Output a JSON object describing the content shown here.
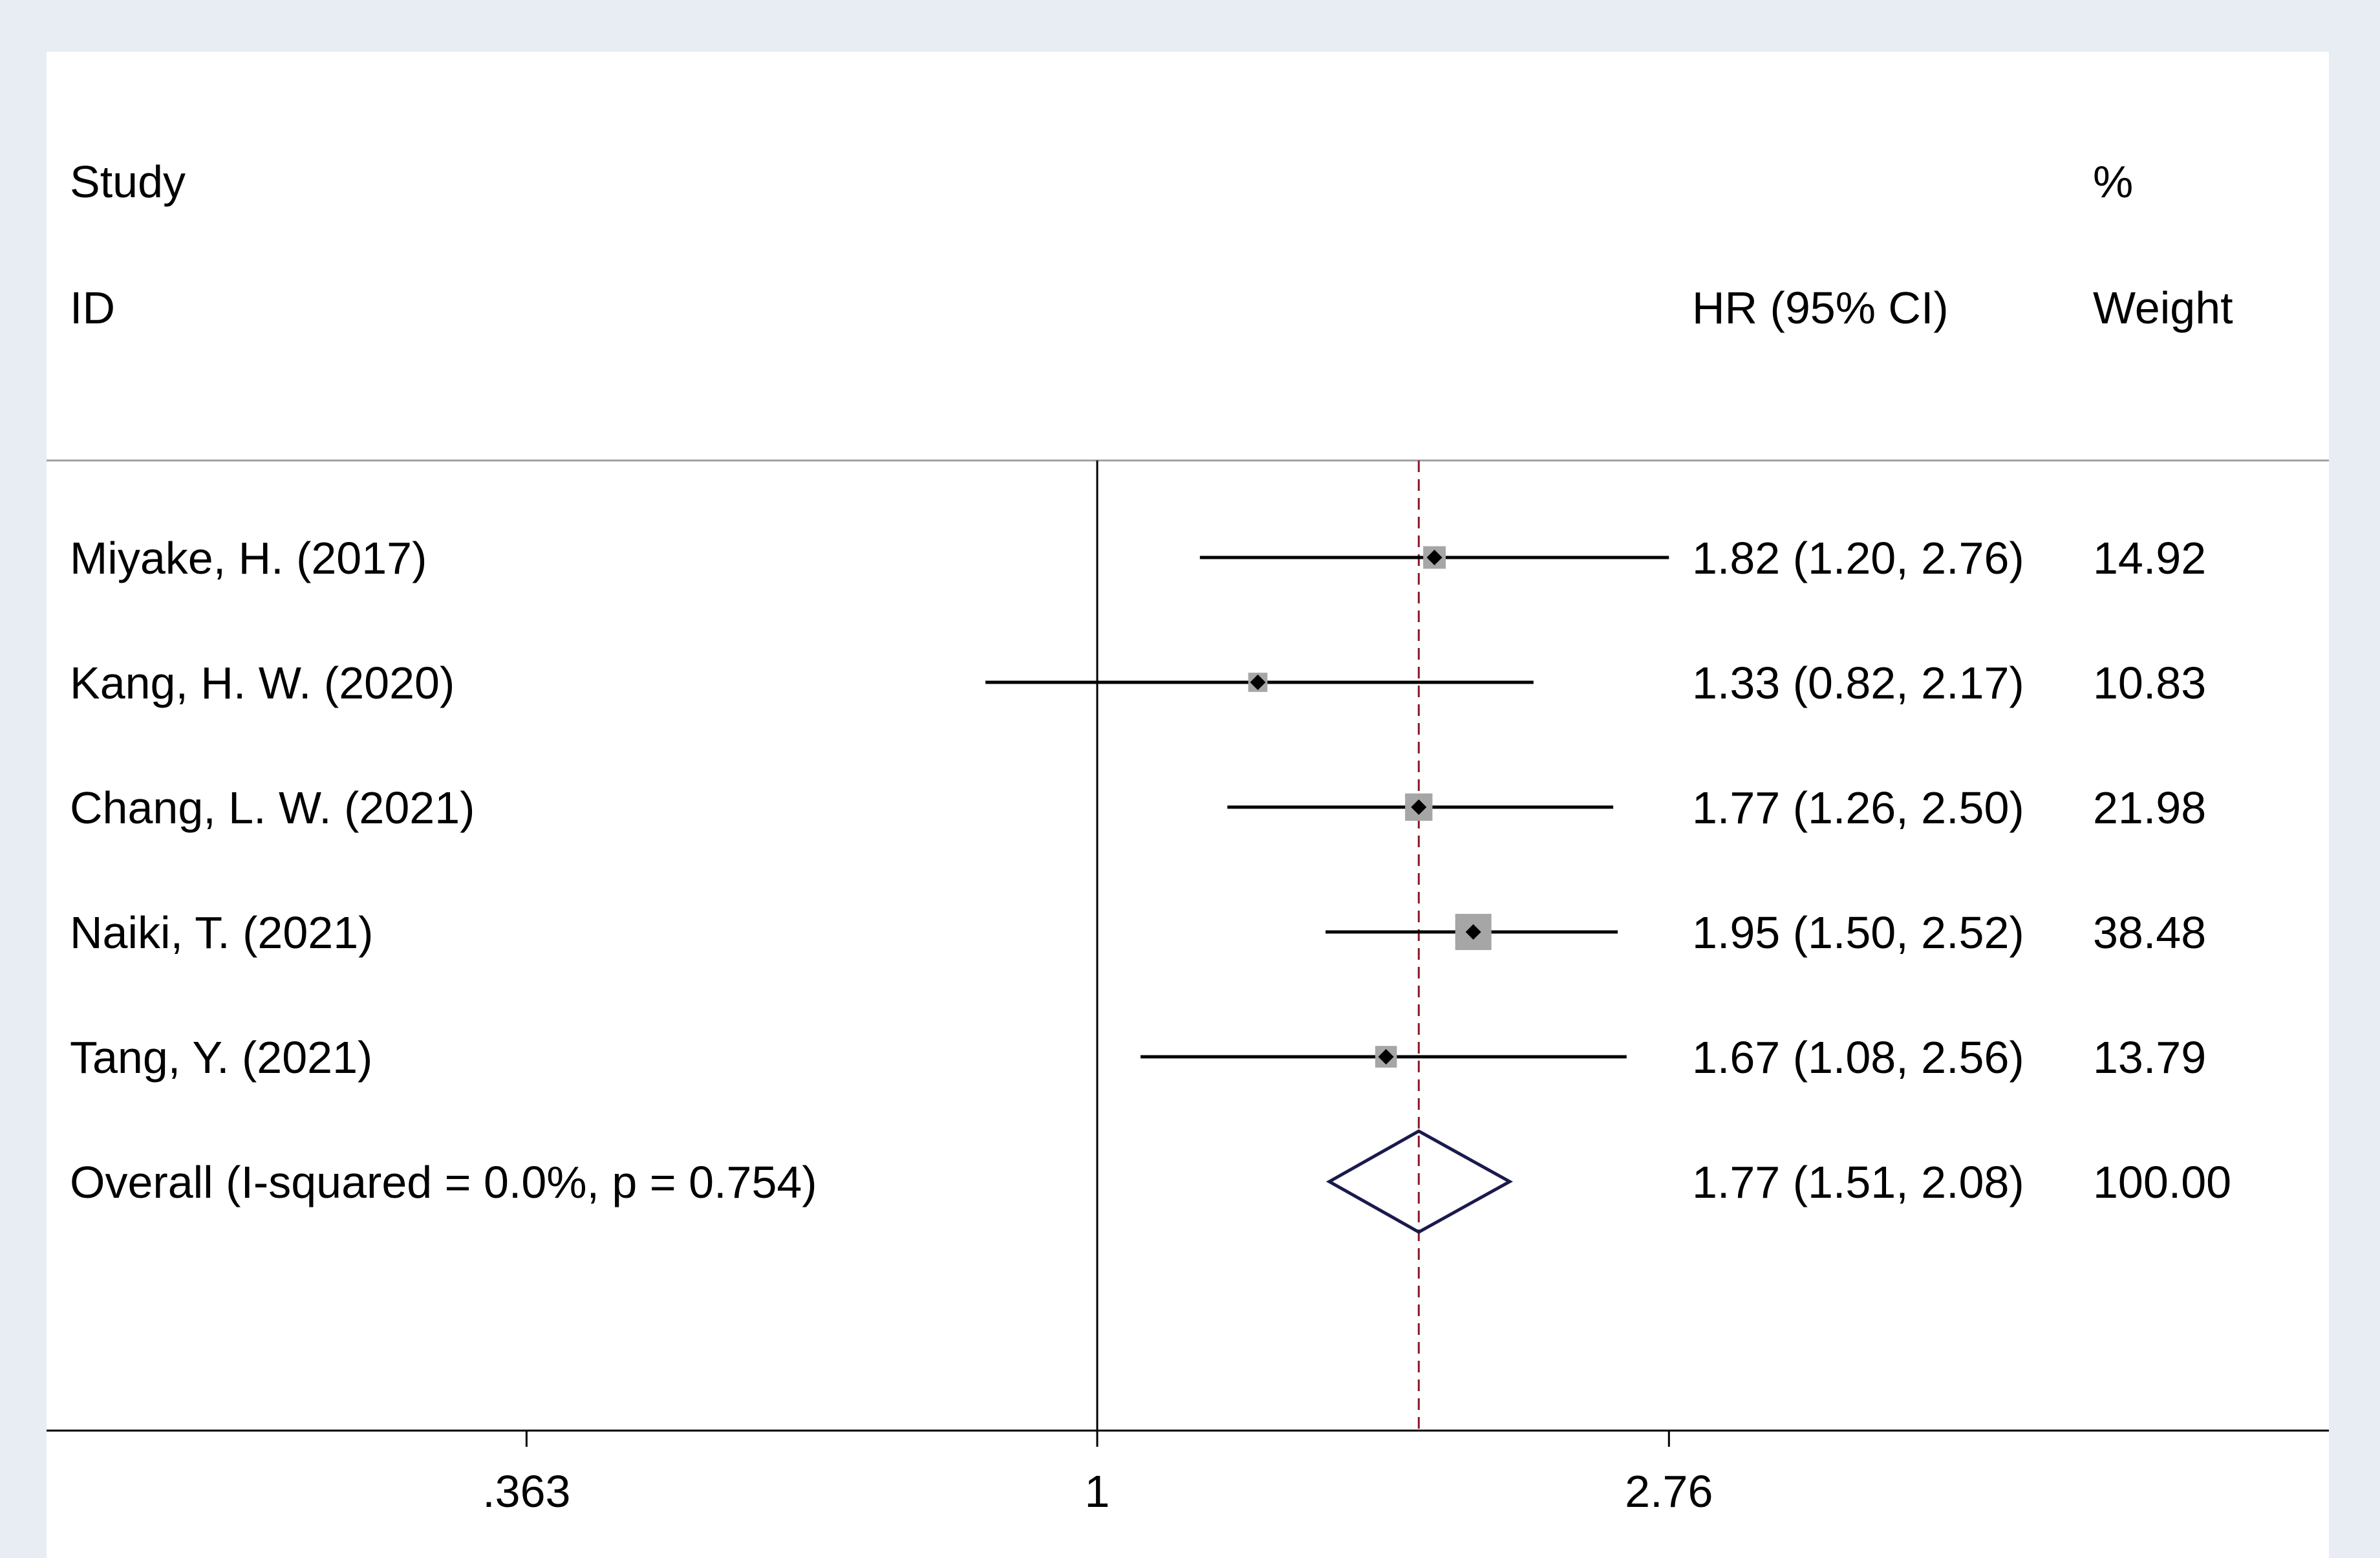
{
  "header": {
    "study_line1": "Study",
    "study_line2": "ID",
    "effect_label": "HR (95% CI)",
    "weight_line1": "%",
    "weight_line2": "Weight"
  },
  "chart_data": {
    "type": "forest",
    "scale": "log",
    "xticks": [
      {
        "value": 0.363,
        "label": ".363"
      },
      {
        "value": 1,
        "label": "1"
      },
      {
        "value": 2.76,
        "label": "2.76"
      }
    ],
    "null_line": 1,
    "pooled_line": 1.77,
    "colors": {
      "ci_line": "#000000",
      "marker": "#000000",
      "weight_box": "#a6a6a6",
      "diamond": "#1a1a4e",
      "pooled_line": "#8b1a2b",
      "plot_bg": "#ffffff",
      "page_bg": "#e8edf3"
    },
    "studies": [
      {
        "id": "Miyake, H. (2017)",
        "hr": 1.82,
        "lo": 1.2,
        "hi": 2.76,
        "hr_text": "1.82 (1.20, 2.76)",
        "weight": 14.92,
        "weight_text": "14.92"
      },
      {
        "id": "Kang, H. W. (2020)",
        "hr": 1.33,
        "lo": 0.82,
        "hi": 2.17,
        "hr_text": "1.33 (0.82, 2.17)",
        "weight": 10.83,
        "weight_text": "10.83"
      },
      {
        "id": "Chang, L. W. (2021)",
        "hr": 1.77,
        "lo": 1.26,
        "hi": 2.5,
        "hr_text": "1.77 (1.26, 2.50)",
        "weight": 21.98,
        "weight_text": "21.98"
      },
      {
        "id": "Naiki, T. (2021)",
        "hr": 1.95,
        "lo": 1.5,
        "hi": 2.52,
        "hr_text": "1.95 (1.50, 2.52)",
        "weight": 38.48,
        "weight_text": "38.48"
      },
      {
        "id": "Tang, Y. (2021)",
        "hr": 1.67,
        "lo": 1.08,
        "hi": 2.56,
        "hr_text": "1.67 (1.08, 2.56)",
        "weight": 13.79,
        "weight_text": "13.79"
      }
    ],
    "overall": {
      "id": "Overall  (I-squared = 0.0%, p = 0.754)",
      "hr": 1.77,
      "lo": 1.51,
      "hi": 2.08,
      "hr_text": "1.77 (1.51, 2.08)",
      "weight": 100.0,
      "weight_text": "100.00"
    }
  }
}
